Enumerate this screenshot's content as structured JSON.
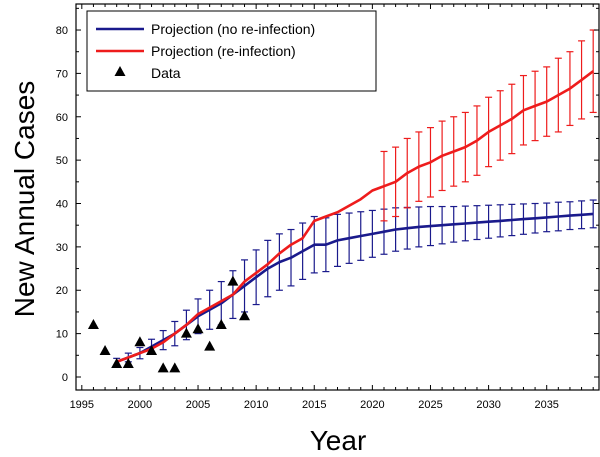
{
  "chart_data": {
    "type": "line",
    "xlabel": "Year",
    "ylabel": "New Annual Cases",
    "xlim": [
      1994.5,
      2039.5
    ],
    "ylim": [
      -3,
      86
    ],
    "xticks": [
      1995,
      2000,
      2005,
      2010,
      2015,
      2020,
      2025,
      2030,
      2035
    ],
    "yticks": [
      0,
      10,
      20,
      30,
      40,
      50,
      60,
      70,
      80
    ],
    "grid": false,
    "legend_position": "top-left",
    "legend": [
      "Projection (no re-infection)",
      "Projection (re-infection)",
      "Data"
    ],
    "series": [
      {
        "name": "Projection (no re-infection)",
        "color": "#1a1a8c",
        "x": [
          1998,
          1999,
          2000,
          2001,
          2002,
          2003,
          2004,
          2005,
          2006,
          2007,
          2008,
          2009,
          2010,
          2011,
          2012,
          2013,
          2014,
          2015,
          2016,
          2017,
          2018,
          2019,
          2020,
          2021,
          2022,
          2023,
          2024,
          2025,
          2026,
          2027,
          2028,
          2029,
          2030,
          2031,
          2032,
          2033,
          2034,
          2035,
          2036,
          2037,
          2038,
          2039
        ],
        "y": [
          3.5,
          4.5,
          5.5,
          7,
          8.5,
          10,
          12,
          14,
          15.5,
          17,
          19,
          21,
          23,
          25,
          26.5,
          27.5,
          29,
          30.5,
          30.5,
          31.5,
          32,
          32.5,
          33,
          33.5,
          34,
          34.3,
          34.6,
          34.8,
          35,
          35.2,
          35.4,
          35.6,
          35.8,
          36,
          36.2,
          36.4,
          36.6,
          36.8,
          37,
          37.2,
          37.4,
          37.6
        ],
        "error": [
          0.8,
          1.0,
          1.3,
          1.7,
          2.2,
          2.8,
          3.4,
          4.0,
          4.5,
          5.0,
          5.5,
          6.0,
          6.3,
          6.5,
          6.5,
          6.5,
          6.5,
          6.5,
          6.2,
          6.0,
          5.8,
          5.6,
          5.4,
          5.2,
          5.0,
          4.8,
          4.6,
          4.5,
          4.3,
          4.1,
          4.0,
          3.9,
          3.8,
          3.7,
          3.6,
          3.5,
          3.4,
          3.3,
          3.3,
          3.2,
          3.2,
          3.2
        ]
      },
      {
        "name": "Projection (re-infection)",
        "color": "#ee1c1c",
        "x": [
          1998,
          1999,
          2000,
          2001,
          2002,
          2003,
          2004,
          2005,
          2006,
          2007,
          2008,
          2009,
          2010,
          2011,
          2012,
          2013,
          2014,
          2015,
          2016,
          2017,
          2018,
          2019,
          2020,
          2021,
          2022,
          2023,
          2024,
          2025,
          2026,
          2027,
          2028,
          2029,
          2030,
          2031,
          2032,
          2033,
          2034,
          2035,
          2036,
          2037,
          2038,
          2039
        ],
        "y": [
          3.5,
          4.5,
          5.5,
          6.5,
          8,
          10,
          12,
          14.5,
          16,
          17.5,
          19,
          22,
          24,
          26,
          28.5,
          30.5,
          32,
          36,
          37,
          38,
          39.5,
          41,
          43,
          44,
          45,
          47,
          48.5,
          49.5,
          51,
          52,
          53,
          54.5,
          56.5,
          58,
          59.5,
          61.5,
          62.5,
          63.5,
          65,
          66.5,
          68.5,
          70.5
        ],
        "error": [
          0,
          0,
          0,
          0,
          0,
          0,
          0,
          0,
          0,
          0,
          0,
          0,
          0,
          0,
          0,
          0,
          0,
          0,
          0,
          0,
          0,
          0,
          0,
          8,
          8,
          8,
          8,
          8,
          8,
          8,
          8,
          8,
          8,
          8,
          8,
          8,
          8,
          8,
          8.5,
          8.5,
          9,
          9.5
        ]
      }
    ],
    "data_points": {
      "name": "Data",
      "x": [
        1996,
        1997,
        1998,
        1999,
        2000,
        2001,
        2002,
        2003,
        2004,
        2005,
        2006,
        2007,
        2008,
        2009
      ],
      "y": [
        12,
        6,
        3,
        3,
        8,
        6,
        2,
        2,
        10,
        11,
        7,
        12,
        22,
        14
      ]
    }
  }
}
